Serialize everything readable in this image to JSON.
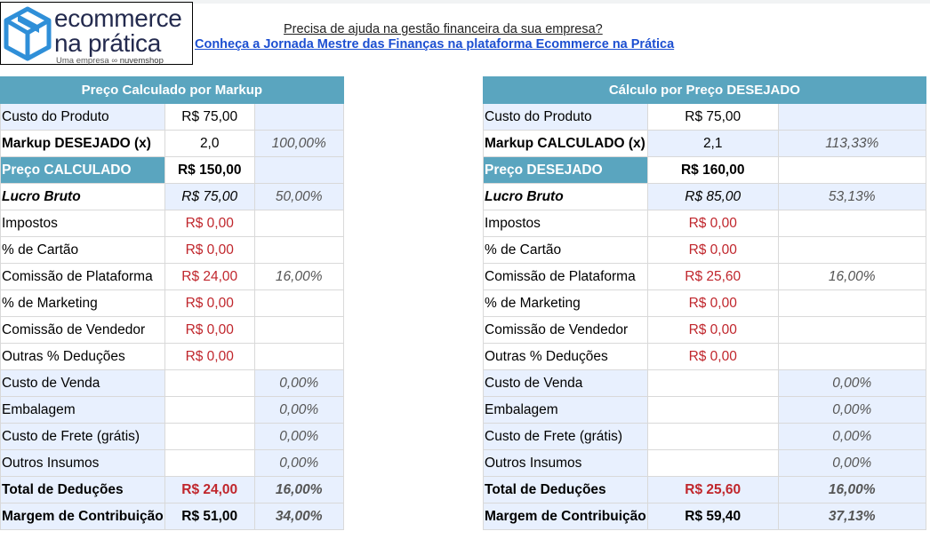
{
  "logo": {
    "line1": "ecommerce",
    "line2": "na prática",
    "sub_prefix": "Uma empresa",
    "sub_brand": "nuvemshop"
  },
  "promo": {
    "question": "Precisa de ajuda na gestão financeira da sua empresa?",
    "link": "Conheça a Jornada Mestre das Finanças na plataforma Ecommerce na Prática"
  },
  "left_table": {
    "title": "Preço Calculado por Markup",
    "rows": {
      "custo_produto": {
        "label": "Custo do Produto",
        "value": "R$ 75,00",
        "pct": ""
      },
      "markup": {
        "label": "Markup DESEJADO (x)",
        "value": "2,0",
        "pct": "100,00%"
      },
      "preco": {
        "label": "Preço CALCULADO",
        "value": "R$ 150,00",
        "pct": ""
      },
      "lucro": {
        "label": "Lucro Bruto",
        "value": "R$ 75,00",
        "pct": "50,00%"
      },
      "impostos": {
        "label": "Impostos",
        "value": "R$ 0,00",
        "pct": ""
      },
      "cartao": {
        "label": "% de Cartão",
        "value": "R$ 0,00",
        "pct": ""
      },
      "comissao_plat": {
        "label": "Comissão de Plataforma",
        "value": "R$ 24,00",
        "pct": "16,00%"
      },
      "marketing": {
        "label": "% de Marketing",
        "value": "R$ 0,00",
        "pct": ""
      },
      "comissao_vend": {
        "label": "Comissão de Vendedor",
        "value": "R$ 0,00",
        "pct": ""
      },
      "outras": {
        "label": "Outras % Deduções",
        "value": "R$ 0,00",
        "pct": ""
      },
      "custo_venda": {
        "label": "Custo de Venda",
        "value": "",
        "pct": "0,00%"
      },
      "embalagem": {
        "label": "Embalagem",
        "value": "",
        "pct": "0,00%"
      },
      "frete": {
        "label": "Custo de Frete (grátis)",
        "value": "",
        "pct": "0,00%"
      },
      "insumos": {
        "label": "Outros Insumos",
        "value": "",
        "pct": "0,00%"
      },
      "total": {
        "label": "Total de Deduções",
        "value": "R$ 24,00",
        "pct": "16,00%"
      },
      "margem": {
        "label": "Margem de Contribuição",
        "value": "R$ 51,00",
        "pct": "34,00%"
      }
    }
  },
  "right_table": {
    "title": "Cálculo por Preço DESEJADO",
    "rows": {
      "custo_produto": {
        "label": "Custo do Produto",
        "value": "R$ 75,00",
        "pct": ""
      },
      "markup": {
        "label": "Markup CALCULADO (x)",
        "value": "2,1",
        "pct": "113,33%"
      },
      "preco": {
        "label": "Preço DESEJADO",
        "value": "R$ 160,00",
        "pct": ""
      },
      "lucro": {
        "label": "Lucro Bruto",
        "value": "R$ 85,00",
        "pct": "53,13%"
      },
      "impostos": {
        "label": "Impostos",
        "value": "R$ 0,00",
        "pct": ""
      },
      "cartao": {
        "label": "% de Cartão",
        "value": "R$ 0,00",
        "pct": ""
      },
      "comissao_plat": {
        "label": "Comissão de Plataforma",
        "value": "R$ 25,60",
        "pct": "16,00%"
      },
      "marketing": {
        "label": "% de Marketing",
        "value": "R$ 0,00",
        "pct": ""
      },
      "comissao_vend": {
        "label": "Comissão de Vendedor",
        "value": "R$ 0,00",
        "pct": ""
      },
      "outras": {
        "label": "Outras % Deduções",
        "value": "R$ 0,00",
        "pct": ""
      },
      "custo_venda": {
        "label": "Custo de Venda",
        "value": "",
        "pct": "0,00%"
      },
      "embalagem": {
        "label": "Embalagem",
        "value": "",
        "pct": "0,00%"
      },
      "frete": {
        "label": "Custo de Frete (grátis)",
        "value": "",
        "pct": "0,00%"
      },
      "insumos": {
        "label": "Outros Insumos",
        "value": "",
        "pct": "0,00%"
      },
      "total": {
        "label": "Total de Deduções",
        "value": "R$ 25,60",
        "pct": "16,00%"
      },
      "margem": {
        "label": "Margem de Contribuição",
        "value": "R$ 59,40",
        "pct": "37,13%"
      }
    }
  },
  "colors": {
    "header_bg": "#5aa5bf",
    "label_bg": "#e8f0fe",
    "deduction_red": "#c0262c",
    "link_blue": "#1c4fd1",
    "brand_navy": "#232a4e"
  },
  "icons": [
    "cube-logo-icon",
    "nuvemshop-cloud-icon"
  ]
}
